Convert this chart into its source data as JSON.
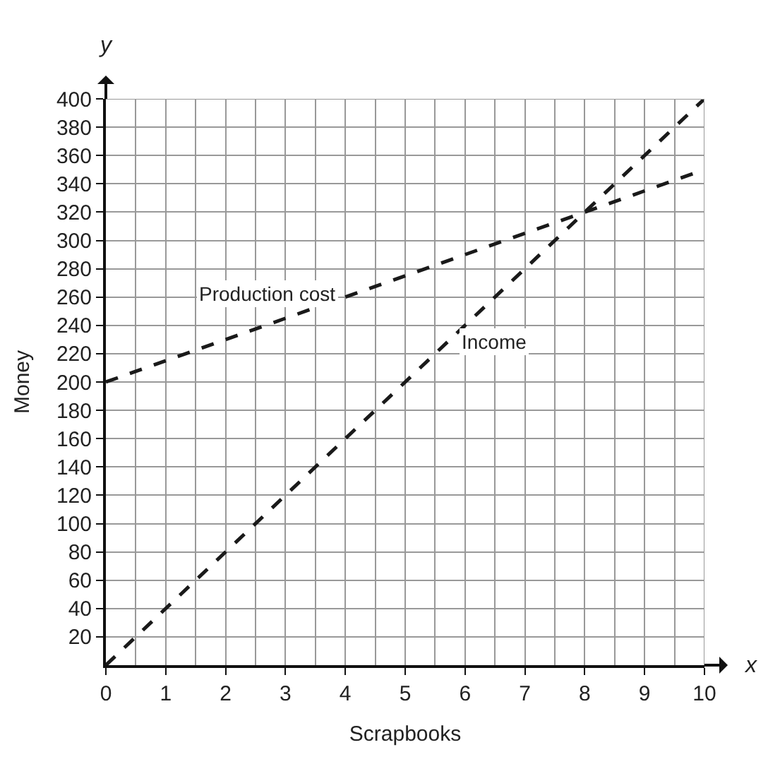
{
  "chart_data": {
    "type": "line",
    "xlabel": "Scrapbooks",
    "ylabel": "Money",
    "series": [
      {
        "name": "Production cost",
        "color": "#1a1a1a",
        "values": [
          200,
          350
        ]
      },
      {
        "name": "Income",
        "color": "#1a1a1a",
        "values": [
          0,
          400
        ]
      }
    ],
    "x": [
      0,
      10
    ],
    "xlim": [
      0,
      10
    ],
    "ylim": [
      0,
      400
    ],
    "xticks": [
      0,
      1,
      2,
      3,
      4,
      5,
      6,
      7,
      8,
      9,
      10
    ],
    "yticks": [
      20,
      40,
      60,
      80,
      100,
      120,
      140,
      160,
      180,
      200,
      220,
      240,
      260,
      280,
      300,
      320,
      340,
      360,
      380,
      400
    ],
    "annotations": [
      "y",
      "x"
    ],
    "grid": true,
    "legend": false,
    "marker": "none",
    "line_style": "dashed"
  }
}
